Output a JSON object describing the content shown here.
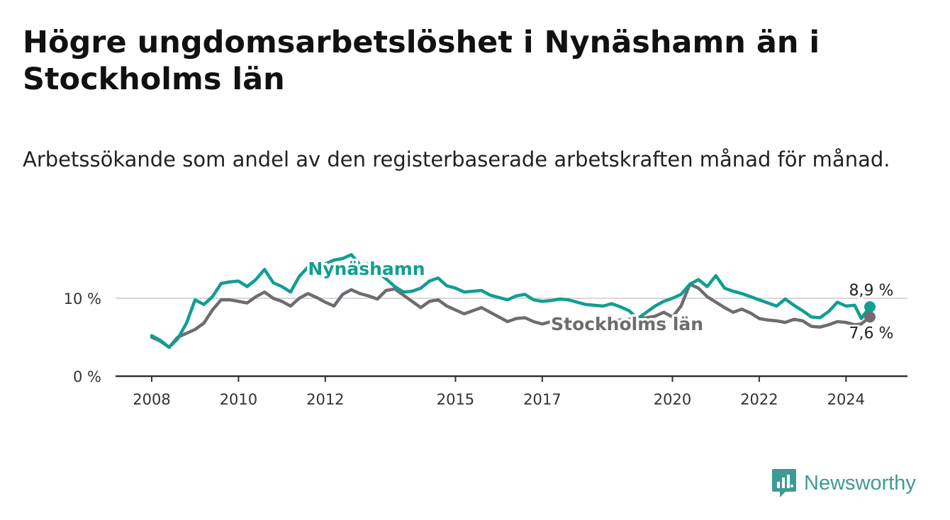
{
  "title": "Högre ungdomsarbetslöshet i Nynäshamn än i Stockholms län",
  "subtitle": "Arbetssökande som andel av den registerbaserade arbetskraften månad för månad.",
  "branding": {
    "name": "Newsworthy",
    "icon": "newsworthy-logo-icon",
    "color": "#3f9a93"
  },
  "chart_data": {
    "type": "line",
    "title": "Högre ungdomsarbetslöshet i Nynäshamn än i Stockholms län",
    "subtitle": "Arbetssökande som andel av den registerbaserade arbetskraften månad för månad.",
    "xlabel": "",
    "ylabel": "",
    "xlim": [
      2008,
      2025.7
    ],
    "ylim": [
      0,
      16
    ],
    "grid": "horizontal",
    "y_ticks": [
      {
        "value": 0,
        "label": "0 %"
      },
      {
        "value": 10,
        "label": "10 %"
      }
    ],
    "x_ticks": [
      {
        "value": 2008,
        "label": "2008"
      },
      {
        "value": 2010,
        "label": "2010"
      },
      {
        "value": 2012,
        "label": "2012"
      },
      {
        "value": 2015,
        "label": "2015"
      },
      {
        "value": 2017,
        "label": "2017"
      },
      {
        "value": 2020,
        "label": "2020"
      },
      {
        "value": 2022,
        "label": "2022"
      },
      {
        "value": 2024,
        "label": "2024"
      }
    ],
    "series": [
      {
        "name": "Nynäshamn",
        "color": "#109e92",
        "end_label": "8,9 %",
        "x": [
          2008.0,
          2008.2,
          2008.4,
          2008.6,
          2008.8,
          2009.0,
          2009.2,
          2009.4,
          2009.6,
          2009.8,
          2010.0,
          2010.2,
          2010.4,
          2010.6,
          2010.8,
          2011.0,
          2011.2,
          2011.4,
          2011.6,
          2011.8,
          2012.0,
          2012.2,
          2012.4,
          2012.6,
          2012.8,
          2013.0,
          2013.2,
          2013.4,
          2013.6,
          2013.8,
          2014.0,
          2014.2,
          2014.4,
          2014.6,
          2014.8,
          2015.0,
          2015.2,
          2015.4,
          2015.6,
          2015.8,
          2016.0,
          2016.2,
          2016.4,
          2016.6,
          2016.8,
          2017.0,
          2017.2,
          2017.4,
          2017.6,
          2017.8,
          2018.0,
          2018.2,
          2018.4,
          2018.6,
          2018.8,
          2019.0,
          2019.2,
          2019.4,
          2019.6,
          2019.8,
          2020.0,
          2020.2,
          2020.4,
          2020.6,
          2020.8,
          2021.0,
          2021.2,
          2021.4,
          2021.6,
          2021.8,
          2022.0,
          2022.2,
          2022.4,
          2022.6,
          2022.8,
          2023.0,
          2023.2,
          2023.4,
          2023.6,
          2023.8,
          2024.0,
          2024.2,
          2024.35,
          2024.55
        ],
        "values": [
          5.2,
          4.6,
          3.7,
          4.8,
          6.8,
          9.8,
          9.2,
          10.2,
          11.9,
          12.1,
          12.2,
          11.5,
          12.4,
          13.7,
          12.0,
          11.5,
          10.8,
          12.8,
          14.0,
          13.5,
          14.4,
          14.9,
          15.1,
          15.6,
          14.3,
          14.4,
          13.4,
          12.5,
          11.5,
          10.8,
          10.9,
          11.3,
          12.2,
          12.6,
          11.6,
          11.3,
          10.8,
          10.9,
          11.0,
          10.4,
          10.1,
          9.8,
          10.3,
          10.5,
          9.8,
          9.6,
          9.7,
          9.9,
          9.8,
          9.5,
          9.2,
          9.1,
          9.0,
          9.3,
          8.9,
          8.4,
          7.4,
          8.2,
          9.0,
          9.6,
          10.0,
          10.5,
          11.8,
          12.4,
          11.5,
          12.9,
          11.3,
          10.9,
          10.6,
          10.2,
          9.8,
          9.4,
          9.0,
          9.9,
          9.1,
          8.4,
          7.6,
          7.5,
          8.3,
          9.5,
          9.0,
          9.1,
          7.4,
          8.9
        ]
      },
      {
        "name": "Stockholms län",
        "color": "#6e6c72",
        "end_label": "7,6 %",
        "x": [
          2008.0,
          2008.2,
          2008.4,
          2008.6,
          2008.8,
          2009.0,
          2009.2,
          2009.4,
          2009.6,
          2009.8,
          2010.0,
          2010.2,
          2010.4,
          2010.6,
          2010.8,
          2011.0,
          2011.2,
          2011.4,
          2011.6,
          2011.8,
          2012.0,
          2012.2,
          2012.4,
          2012.6,
          2012.8,
          2013.0,
          2013.2,
          2013.4,
          2013.6,
          2013.8,
          2014.0,
          2014.2,
          2014.4,
          2014.6,
          2014.8,
          2015.0,
          2015.2,
          2015.4,
          2015.6,
          2015.8,
          2016.0,
          2016.2,
          2016.4,
          2016.6,
          2016.8,
          2017.0,
          2017.2,
          2017.4,
          2017.6,
          2017.8,
          2018.0,
          2018.2,
          2018.4,
          2018.6,
          2018.8,
          2019.0,
          2019.2,
          2019.4,
          2019.6,
          2019.8,
          2020.0,
          2020.2,
          2020.4,
          2020.6,
          2020.8,
          2021.0,
          2021.2,
          2021.4,
          2021.6,
          2021.8,
          2022.0,
          2022.2,
          2022.4,
          2022.6,
          2022.8,
          2023.0,
          2023.2,
          2023.4,
          2023.6,
          2023.8,
          2024.0,
          2024.2,
          2024.35,
          2024.55
        ],
        "values": [
          5.0,
          4.5,
          3.7,
          5.0,
          5.5,
          6.0,
          6.8,
          8.5,
          9.8,
          9.8,
          9.6,
          9.4,
          10.2,
          10.8,
          10.0,
          9.6,
          9.0,
          10.0,
          10.6,
          10.1,
          9.5,
          9.0,
          10.5,
          11.1,
          10.6,
          10.3,
          9.9,
          11.0,
          11.2,
          10.4,
          9.6,
          8.8,
          9.6,
          9.8,
          9.0,
          8.5,
          8.0,
          8.4,
          8.8,
          8.2,
          7.6,
          7.0,
          7.4,
          7.5,
          7.0,
          6.7,
          7.0,
          7.2,
          7.1,
          6.9,
          6.8,
          6.9,
          7.0,
          7.1,
          7.2,
          7.3,
          7.4,
          7.5,
          7.7,
          8.2,
          7.6,
          9.0,
          11.8,
          11.3,
          10.2,
          9.5,
          8.8,
          8.2,
          8.6,
          8.1,
          7.4,
          7.2,
          7.1,
          6.9,
          7.3,
          7.1,
          6.4,
          6.3,
          6.6,
          7.0,
          6.9,
          6.6,
          6.7,
          7.6
        ]
      }
    ]
  }
}
